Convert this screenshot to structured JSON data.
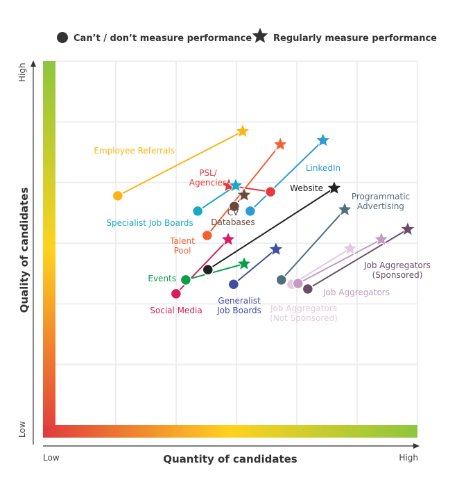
{
  "chart_data": {
    "type": "scatter",
    "title": "",
    "xlabel": "Quantity of candidates",
    "ylabel": "Quality of candidates",
    "x_low_label": "Low",
    "x_high_label": "High",
    "y_low_label": "Low",
    "y_high_label": "High",
    "xlim": [
      0,
      100
    ],
    "ylim": [
      0,
      100
    ],
    "grid": true,
    "legend_placement": "top",
    "legend": [
      {
        "marker": "circle",
        "label": "Can’t / don’t measure performance",
        "color": "#333333"
      },
      {
        "marker": "star",
        "label": "Regularly measure performance",
        "color": "#333333"
      }
    ],
    "series": [
      {
        "name": "Employee Referrals",
        "label": "Employee Referrals",
        "color": "#fbb416",
        "cant_measure": [
          17.2,
          63.0
        ],
        "measure": [
          51.7,
          80.7
        ]
      },
      {
        "name": "PSL/ Agencies",
        "label": [
          "PSL/",
          "Agencies"
        ],
        "color": "#e8383d",
        "cant_measure": [
          59.4,
          64.1
        ],
        "measure": [
          47.9,
          65.8
        ]
      },
      {
        "name": "Talent Pool",
        "label": [
          "Talent",
          "Pool"
        ],
        "color": "#f26130",
        "cant_measure": [
          41.9,
          52.1
        ],
        "measure": [
          62.1,
          77.1
        ]
      },
      {
        "name": "LinkedIn",
        "label": "LinkedIn",
        "color": "#2d9bd8",
        "cant_measure": [
          53.8,
          58.8
        ],
        "measure": [
          73.9,
          78.2
        ]
      },
      {
        "name": "Specialist Job Boards",
        "label": "Specialist Job Boards",
        "color": "#17a8c4",
        "cant_measure": [
          39.3,
          58.8
        ],
        "measure": [
          49.8,
          65.8
        ]
      },
      {
        "name": "CV Databases",
        "label": [
          "CV",
          "Databases"
        ],
        "color": "#6b4a3e",
        "cant_measure": [
          49.4,
          60.1
        ],
        "measure": [
          52.1,
          63.2
        ]
      },
      {
        "name": "Website",
        "label": "Website",
        "color": "#222222",
        "cant_measure": [
          42.1,
          42.7
        ],
        "measure": [
          77.0,
          65.1
        ]
      },
      {
        "name": "Programmatic Advertising",
        "label": [
          "Programmatic",
          "Advertising"
        ],
        "color": "#4f6f7a",
        "cant_measure": [
          62.4,
          39.9
        ],
        "measure": [
          79.9,
          59.2
        ]
      },
      {
        "name": "Social Media",
        "label": "Social Media",
        "color": "#d81b60",
        "cant_measure": [
          33.3,
          36.1
        ],
        "measure": [
          47.7,
          51.0
        ]
      },
      {
        "name": "Events",
        "label": "Events",
        "color": "#0a9e4a",
        "cant_measure": [
          36.0,
          39.9
        ],
        "measure": [
          52.1,
          44.3
        ]
      },
      {
        "name": "Generalist Job Boards",
        "label": [
          "Generalist",
          "Job Boards"
        ],
        "color": "#3f4ea0",
        "cant_measure": [
          49.2,
          38.7
        ],
        "measure": [
          60.9,
          48.3
        ]
      },
      {
        "name": "Job Aggregators (Not Sponsored)",
        "label": [
          "Job Aggregators",
          "(Not Sponsored)"
        ],
        "color": "#e2cbe0",
        "cant_measure": [
          65.3,
          38.7
        ],
        "measure": [
          81.4,
          48.5
        ]
      },
      {
        "name": "Job Aggregators",
        "label": "Job Aggregators",
        "color": "#c39bc1",
        "cant_measure": [
          67.0,
          38.9
        ],
        "measure": [
          90.0,
          51.0
        ]
      },
      {
        "name": "Job Aggregators (Sponsored)",
        "label": [
          "Job Aggregators",
          "(Sponsored)"
        ],
        "color": "#6b4d68",
        "cant_measure": [
          69.7,
          37.4
        ],
        "measure": [
          97.3,
          53.8
        ]
      }
    ]
  }
}
